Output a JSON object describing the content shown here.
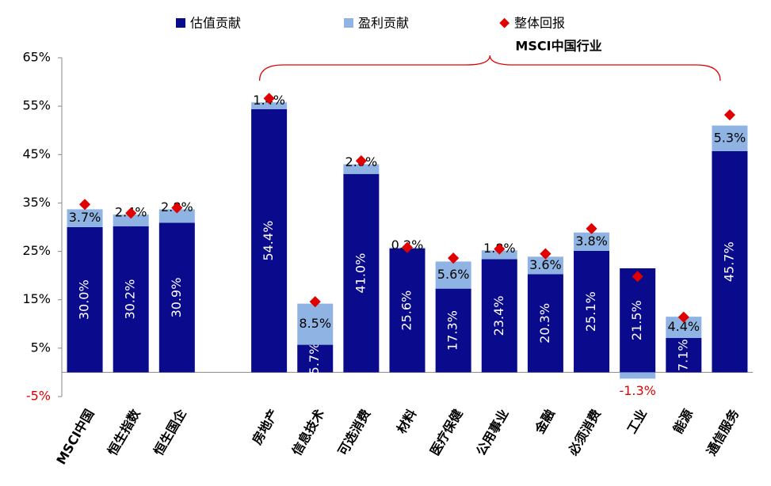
{
  "chart_data": {
    "type": "bar",
    "stacked": true,
    "annotation": "MSCI中国行业",
    "categories": [
      "MSCI中国",
      "恒生指数",
      "恒生国企",
      null,
      "房地产",
      "信息技术",
      "可选消费",
      "材料",
      "医疗保健",
      "公用事业",
      "金融",
      "必须消费",
      "工业",
      "能源",
      "通信服务"
    ],
    "series": [
      {
        "name": "估值贡献",
        "color": "#0a0a8c",
        "values": [
          30.0,
          30.2,
          30.9,
          null,
          54.4,
          5.7,
          41.0,
          25.6,
          17.3,
          23.4,
          20.3,
          25.1,
          21.5,
          7.1,
          45.7
        ],
        "value_labels": [
          "30.0%",
          "30.2%",
          "30.9%",
          null,
          "54.4%",
          "5.7%",
          "41.0%",
          "25.6%",
          "17.3%",
          "23.4%",
          "20.3%",
          "25.1%",
          "21.5%",
          "7.1%",
          "45.7%"
        ]
      },
      {
        "name": "盈利贡献",
        "color": "#8fb4e3",
        "values": [
          3.7,
          2.4,
          2.8,
          null,
          1.4,
          8.5,
          2.0,
          0.2,
          5.6,
          1.8,
          3.6,
          3.8,
          -1.3,
          4.4,
          5.3
        ],
        "value_labels": [
          "3.7%",
          "2.4%",
          "2.8%",
          null,
          "1.4%",
          "8.5%",
          "2.0%",
          "0.2%",
          "5.6%",
          "1.8%",
          "3.6%",
          "3.8%",
          "-1.3%",
          "4.4%",
          "5.3%"
        ]
      },
      {
        "name": "整体回报",
        "color": "#e00000",
        "type": "scatter",
        "values": [
          34.7,
          32.9,
          34.0,
          null,
          56.6,
          14.6,
          43.7,
          25.8,
          23.6,
          25.5,
          24.5,
          29.7,
          19.8,
          11.4,
          53.2
        ]
      }
    ],
    "negative_color": "#e00000",
    "ylim": [
      -5,
      65
    ],
    "yticks": [
      {
        "value": -5,
        "label": "-5%"
      },
      {
        "value": 5,
        "label": "5%"
      },
      {
        "value": 15,
        "label": "15%"
      },
      {
        "value": 25,
        "label": "25%"
      },
      {
        "value": 35,
        "label": "35%"
      },
      {
        "value": 45,
        "label": "45%"
      },
      {
        "value": 55,
        "label": "55%"
      },
      {
        "value": 65,
        "label": "65%"
      }
    ]
  }
}
